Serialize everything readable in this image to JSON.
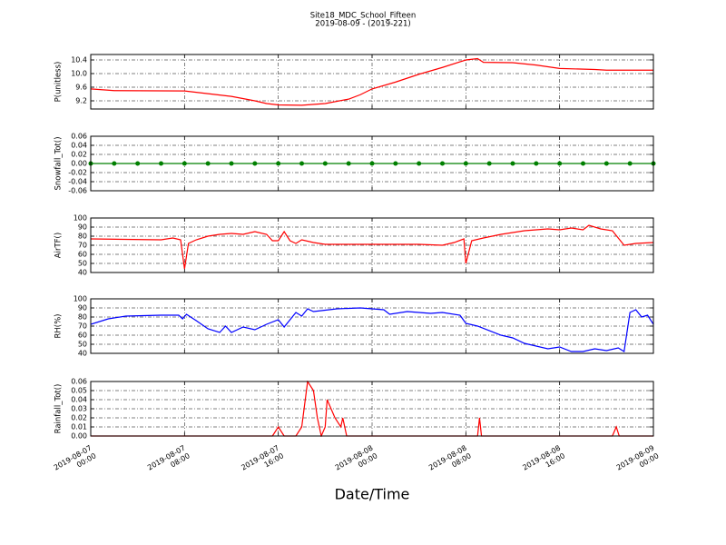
{
  "title": "Site18_MDC_School_Fifteen",
  "subtitle": "2019-08-09 - (2019-221)",
  "xlabel": "Date/Time",
  "chart_data": [
    {
      "type": "line",
      "ylabel": "P(unitless)",
      "color": "#ff0000",
      "grid": true,
      "xlim": [
        "2019-08-07 00:00",
        "2019-08-09 00:00"
      ],
      "xticks": [
        "2019-08-07 00:00",
        "2019-08-07 08:00",
        "2019-08-07 16:00",
        "2019-08-08 00:00",
        "2019-08-08 08:00",
        "2019-08-08 16:00",
        "2019-08-09 00:00"
      ],
      "ylim": [
        8.96,
        10.56
      ],
      "yticks": [
        9.2,
        9.6,
        {
          "value": 10.0,
          "label": "10.0"
        },
        10.4
      ],
      "x": [
        "2019-08-07 00:00",
        "2019-08-07 02:00",
        "2019-08-07 08:00",
        "2019-08-07 10:00",
        "2019-08-07 12:00",
        "2019-08-07 14:00",
        "2019-08-07 15:00",
        "2019-08-07 16:00",
        "2019-08-07 18:00",
        "2019-08-07 20:00",
        "2019-08-07 22:00",
        "2019-08-07 23:00",
        "2019-08-08 00:00",
        "2019-08-08 02:00",
        "2019-08-08 04:00",
        "2019-08-08 06:00",
        "2019-08-08 08:00",
        "2019-08-08 09:00",
        "2019-08-08 09:30",
        "2019-08-08 12:00",
        "2019-08-08 14:00",
        "2019-08-08 16:00",
        "2019-08-08 19:00",
        "2019-08-08 20:00",
        "2019-08-09 00:00"
      ],
      "values": [
        9.55,
        9.5,
        9.49,
        9.41,
        9.33,
        9.2,
        9.12,
        9.08,
        9.07,
        9.12,
        9.25,
        9.38,
        9.55,
        9.75,
        9.98,
        10.18,
        10.4,
        10.44,
        10.33,
        10.32,
        10.25,
        10.15,
        10.12,
        10.1,
        10.1
      ]
    },
    {
      "type": "line",
      "ylabel": "Snowfall_Tot()",
      "color": "#008000",
      "markers": true,
      "grid": true,
      "xlim": [
        "2019-08-07 00:00",
        "2019-08-09 00:00"
      ],
      "xticks": [
        "2019-08-07 00:00",
        "2019-08-07 08:00",
        "2019-08-07 16:00",
        "2019-08-08 00:00",
        "2019-08-08 08:00",
        "2019-08-08 16:00",
        "2019-08-09 00:00"
      ],
      "ylim": [
        -0.06,
        0.06
      ],
      "yticks": [
        {
          "value": -0.06,
          "label": "-0.06"
        },
        {
          "value": -0.04,
          "label": "-0.04"
        },
        {
          "value": -0.02,
          "label": "-0.02"
        },
        {
          "value": 0,
          "label": "0.00"
        },
        {
          "value": 0.02,
          "label": "0.02"
        },
        {
          "value": 0.04,
          "label": "0.04"
        },
        {
          "value": 0.06,
          "label": "0.06"
        }
      ],
      "x": [
        "2019-08-07 00:00",
        "2019-08-07 02:00",
        "2019-08-07 04:00",
        "2019-08-07 06:00",
        "2019-08-07 08:00",
        "2019-08-07 10:00",
        "2019-08-07 12:00",
        "2019-08-07 14:00",
        "2019-08-07 16:00",
        "2019-08-07 18:00",
        "2019-08-07 20:00",
        "2019-08-07 22:00",
        "2019-08-08 00:00",
        "2019-08-08 02:00",
        "2019-08-08 04:00",
        "2019-08-08 06:00",
        "2019-08-08 08:00",
        "2019-08-08 10:00",
        "2019-08-08 12:00",
        "2019-08-08 14:00",
        "2019-08-08 16:00",
        "2019-08-08 18:00",
        "2019-08-08 20:00",
        "2019-08-08 22:00",
        "2019-08-09 00:00"
      ],
      "values": [
        0,
        0,
        0,
        0,
        0,
        0,
        0,
        0,
        0,
        0,
        0,
        0,
        0,
        0,
        0,
        0,
        0,
        0,
        0,
        0,
        0,
        0,
        0,
        0,
        0
      ]
    },
    {
      "type": "line",
      "ylabel": "AirTF()",
      "color": "#ff0000",
      "grid": true,
      "xlim": [
        "2019-08-07 00:00",
        "2019-08-09 00:00"
      ],
      "xticks": [
        "2019-08-07 00:00",
        "2019-08-07 08:00",
        "2019-08-07 16:00",
        "2019-08-08 00:00",
        "2019-08-08 08:00",
        "2019-08-08 16:00",
        "2019-08-09 00:00"
      ],
      "ylim": [
        40,
        100
      ],
      "yticks": [
        40,
        50,
        60,
        70,
        80,
        90,
        100
      ],
      "x": [
        "2019-08-07 00:00",
        "2019-08-07 06:00",
        "2019-08-07 07:00",
        "2019-08-07 07:40",
        "2019-08-07 08:00",
        "2019-08-07 08:20",
        "2019-08-07 09:00",
        "2019-08-07 10:00",
        "2019-08-07 11:00",
        "2019-08-07 12:00",
        "2019-08-07 13:00",
        "2019-08-07 14:00",
        "2019-08-07 15:00",
        "2019-08-07 15:30",
        "2019-08-07 16:00",
        "2019-08-07 16:30",
        "2019-08-07 17:00",
        "2019-08-07 17:30",
        "2019-08-07 18:00",
        "2019-08-07 19:00",
        "2019-08-07 20:00",
        "2019-08-08 00:00",
        "2019-08-08 04:00",
        "2019-08-08 06:00",
        "2019-08-08 07:00",
        "2019-08-08 07:50",
        "2019-08-08 08:00",
        "2019-08-08 08:30",
        "2019-08-08 09:30",
        "2019-08-08 11:00",
        "2019-08-08 13:00",
        "2019-08-08 15:00",
        "2019-08-08 16:00",
        "2019-08-08 17:00",
        "2019-08-08 18:00",
        "2019-08-08 18:30",
        "2019-08-08 19:30",
        "2019-08-08 20:30",
        "2019-08-08 21:00",
        "2019-08-08 21:30",
        "2019-08-08 22:30",
        "2019-08-09 00:00"
      ],
      "values": [
        77,
        76,
        78,
        76,
        44,
        72,
        76,
        80,
        82,
        83,
        82,
        85,
        82,
        75,
        75,
        85,
        75,
        72,
        76,
        73,
        71,
        71,
        71,
        70,
        73,
        77,
        50,
        75,
        78,
        82,
        86,
        88,
        87,
        89,
        87,
        92,
        88,
        86,
        78,
        70,
        72,
        73
      ]
    },
    {
      "type": "line",
      "ylabel": "RH(%)",
      "color": "#0000ff",
      "grid": true,
      "xlim": [
        "2019-08-07 00:00",
        "2019-08-09 00:00"
      ],
      "xticks": [
        "2019-08-07 00:00",
        "2019-08-07 08:00",
        "2019-08-07 16:00",
        "2019-08-08 00:00",
        "2019-08-08 08:00",
        "2019-08-08 16:00",
        "2019-08-09 00:00"
      ],
      "ylim": [
        40,
        100
      ],
      "yticks": [
        40,
        50,
        60,
        70,
        80,
        90,
        100
      ],
      "x": [
        "2019-08-07 00:00",
        "2019-08-07 01:30",
        "2019-08-07 03:00",
        "2019-08-07 06:00",
        "2019-08-07 07:30",
        "2019-08-07 07:50",
        "2019-08-07 08:10",
        "2019-08-07 09:00",
        "2019-08-07 10:00",
        "2019-08-07 11:00",
        "2019-08-07 11:30",
        "2019-08-07 12:00",
        "2019-08-07 13:00",
        "2019-08-07 14:00",
        "2019-08-07 15:00",
        "2019-08-07 16:00",
        "2019-08-07 16:30",
        "2019-08-07 17:30",
        "2019-08-07 18:00",
        "2019-08-07 18:30",
        "2019-08-07 19:00",
        "2019-08-07 21:00",
        "2019-08-07 23:00",
        "2019-08-08 00:00",
        "2019-08-08 01:00",
        "2019-08-08 01:30",
        "2019-08-08 03:00",
        "2019-08-08 05:00",
        "2019-08-08 06:00",
        "2019-08-08 07:30",
        "2019-08-08 08:00",
        "2019-08-08 09:00",
        "2019-08-08 11:00",
        "2019-08-08 12:00",
        "2019-08-08 13:00",
        "2019-08-08 14:00",
        "2019-08-08 15:00",
        "2019-08-08 16:00",
        "2019-08-08 17:00",
        "2019-08-08 18:00",
        "2019-08-08 19:00",
        "2019-08-08 20:00",
        "2019-08-08 21:00",
        "2019-08-08 21:30",
        "2019-08-08 22:00",
        "2019-08-08 22:30",
        "2019-08-08 23:00",
        "2019-08-08 23:30",
        "2019-08-09 00:00"
      ],
      "values": [
        72,
        78,
        81,
        82,
        82,
        78,
        83,
        76,
        67,
        63,
        70,
        63,
        69,
        66,
        72,
        77,
        69,
        85,
        81,
        89,
        86,
        89,
        90,
        89,
        88,
        83,
        86,
        84,
        85,
        82,
        73,
        70,
        60,
        57,
        51,
        48,
        45,
        47,
        42,
        42,
        45,
        43,
        46,
        42,
        85,
        88,
        80,
        82,
        72
      ]
    },
    {
      "type": "line",
      "ylabel": "Rainfall_Tot()",
      "color": "#ff0000",
      "grid": true,
      "xlim": [
        "2019-08-07 00:00",
        "2019-08-09 00:00"
      ],
      "xticks": [
        "2019-08-07 00:00",
        "2019-08-07 08:00",
        "2019-08-07 16:00",
        "2019-08-08 00:00",
        "2019-08-08 08:00",
        "2019-08-08 16:00",
        "2019-08-09 00:00"
      ],
      "ylim": [
        0,
        0.06
      ],
      "yticks": [
        {
          "value": 0,
          "label": "0.00"
        },
        0.01,
        0.02,
        0.03,
        0.04,
        0.05,
        0.06
      ],
      "x": [
        "2019-08-07 00:00",
        "2019-08-07 15:30",
        "2019-08-07 16:00",
        "2019-08-07 16:30",
        "2019-08-07 17:30",
        "2019-08-07 18:00",
        "2019-08-07 18:30",
        "2019-08-07 19:00",
        "2019-08-07 19:20",
        "2019-08-07 19:40",
        "2019-08-07 20:00",
        "2019-08-07 20:10",
        "2019-08-07 20:50",
        "2019-08-07 21:20",
        "2019-08-07 21:30",
        "2019-08-07 21:50",
        "2019-08-08 09:00",
        "2019-08-08 09:10",
        "2019-08-08 09:20",
        "2019-08-08 20:30",
        "2019-08-08 20:50",
        "2019-08-08 21:05",
        "2019-08-09 00:00"
      ],
      "values": [
        0,
        0,
        0.01,
        0,
        0,
        0.01,
        0.06,
        0.05,
        0.02,
        0,
        0.01,
        0.04,
        0.02,
        0.01,
        0.02,
        0,
        0,
        0.02,
        0,
        0,
        0.01,
        0,
        0
      ]
    }
  ]
}
